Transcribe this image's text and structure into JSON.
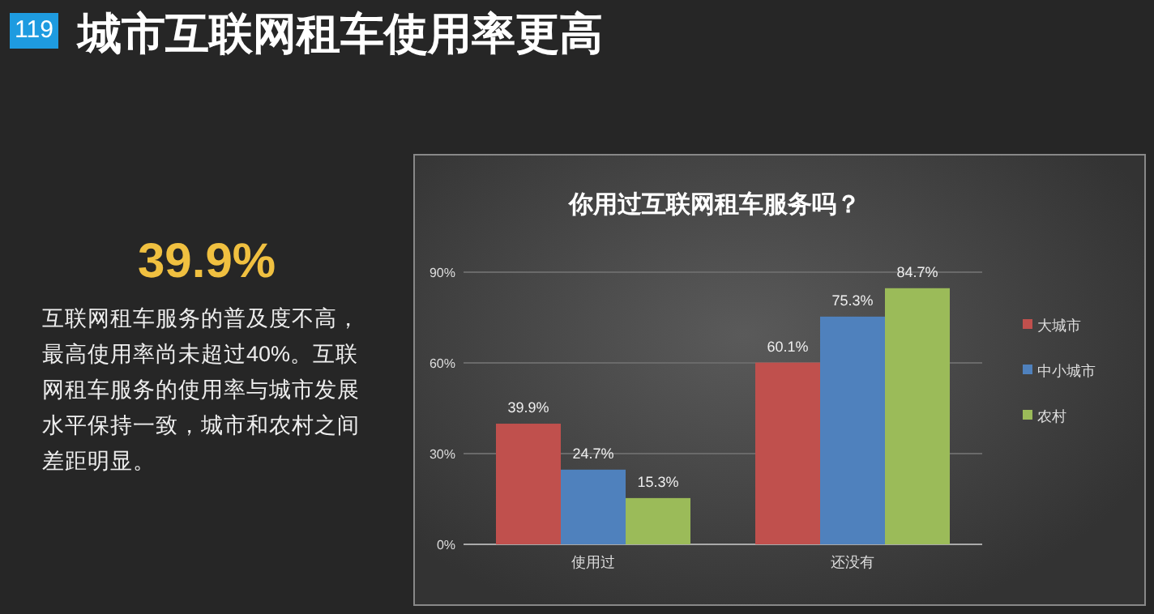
{
  "chart_data": [
    {
      "type": "other",
      "title": "城市互联网租车使用率更高",
      "annotations": [
        "119",
        "39.9%",
        "互联网租车服务的普及度不高，最高使用率尚未超过40%。互联网租车服务的使用率与城市发展水平保持一致，城市和农村之间差距明显。"
      ]
    },
    {
      "type": "bar",
      "title": "你用过互联网租车服务吗？",
      "categories": [
        "使用过",
        "还没有"
      ],
      "series": [
        {
          "name": "大城市",
          "color": "#c0504d",
          "values": [
            39.9,
            60.1
          ],
          "value_labels": [
            "39.9%",
            "60.1%"
          ]
        },
        {
          "name": "中小城市",
          "color": "#4f81bd",
          "values": [
            24.7,
            75.3
          ],
          "value_labels": [
            "24.7%",
            "75.3%"
          ]
        },
        {
          "name": "农村",
          "color": "#9bbb59",
          "values": [
            15.3,
            84.7
          ],
          "value_labels": [
            "15.3%",
            "84.7%"
          ]
        }
      ],
      "ylim": [
        0,
        90
      ],
      "yticks": [
        {
          "value": 0,
          "label": "0%"
        },
        {
          "value": 30,
          "label": "30%"
        },
        {
          "value": 60,
          "label": "60%"
        },
        {
          "value": 90,
          "label": "90%"
        }
      ],
      "grid": "y",
      "legend": "right"
    }
  ]
}
